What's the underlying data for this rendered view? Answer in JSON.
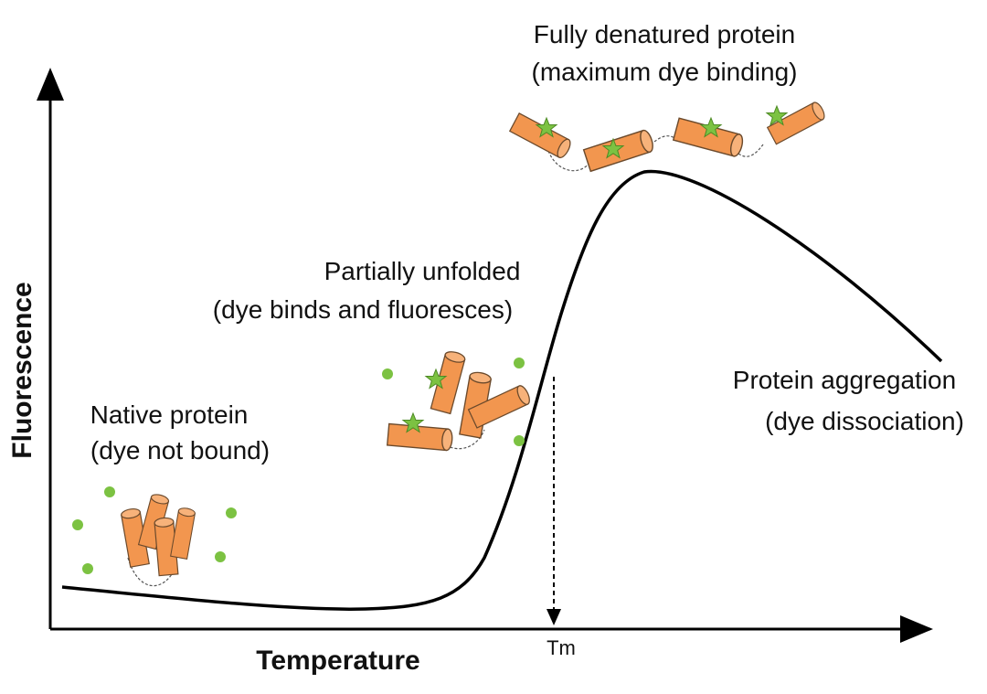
{
  "axes": {
    "x_label": "Temperature",
    "y_label": "Fluorescence",
    "x_marker": "Tm"
  },
  "annotations": {
    "native": {
      "line1": "Native protein",
      "line2": "(dye not bound)"
    },
    "partial": {
      "line1": "Partially unfolded",
      "line2": "(dye binds and fluoresces)"
    },
    "denatured": {
      "line1": "Fully denatured protein",
      "line2": "(maximum dye binding)"
    },
    "aggregation": {
      "line1": "Protein aggregation",
      "line2": "(dye dissociation)"
    }
  },
  "colors": {
    "cylinder": "#F2964F",
    "cylinder_stroke": "#6b4a2c",
    "dye": "#7CC242",
    "curve": "#000000"
  },
  "icons": {
    "protein": "helix-cylinder-icon",
    "dye": "dye-dot-icon",
    "bound_dye": "star-icon"
  }
}
